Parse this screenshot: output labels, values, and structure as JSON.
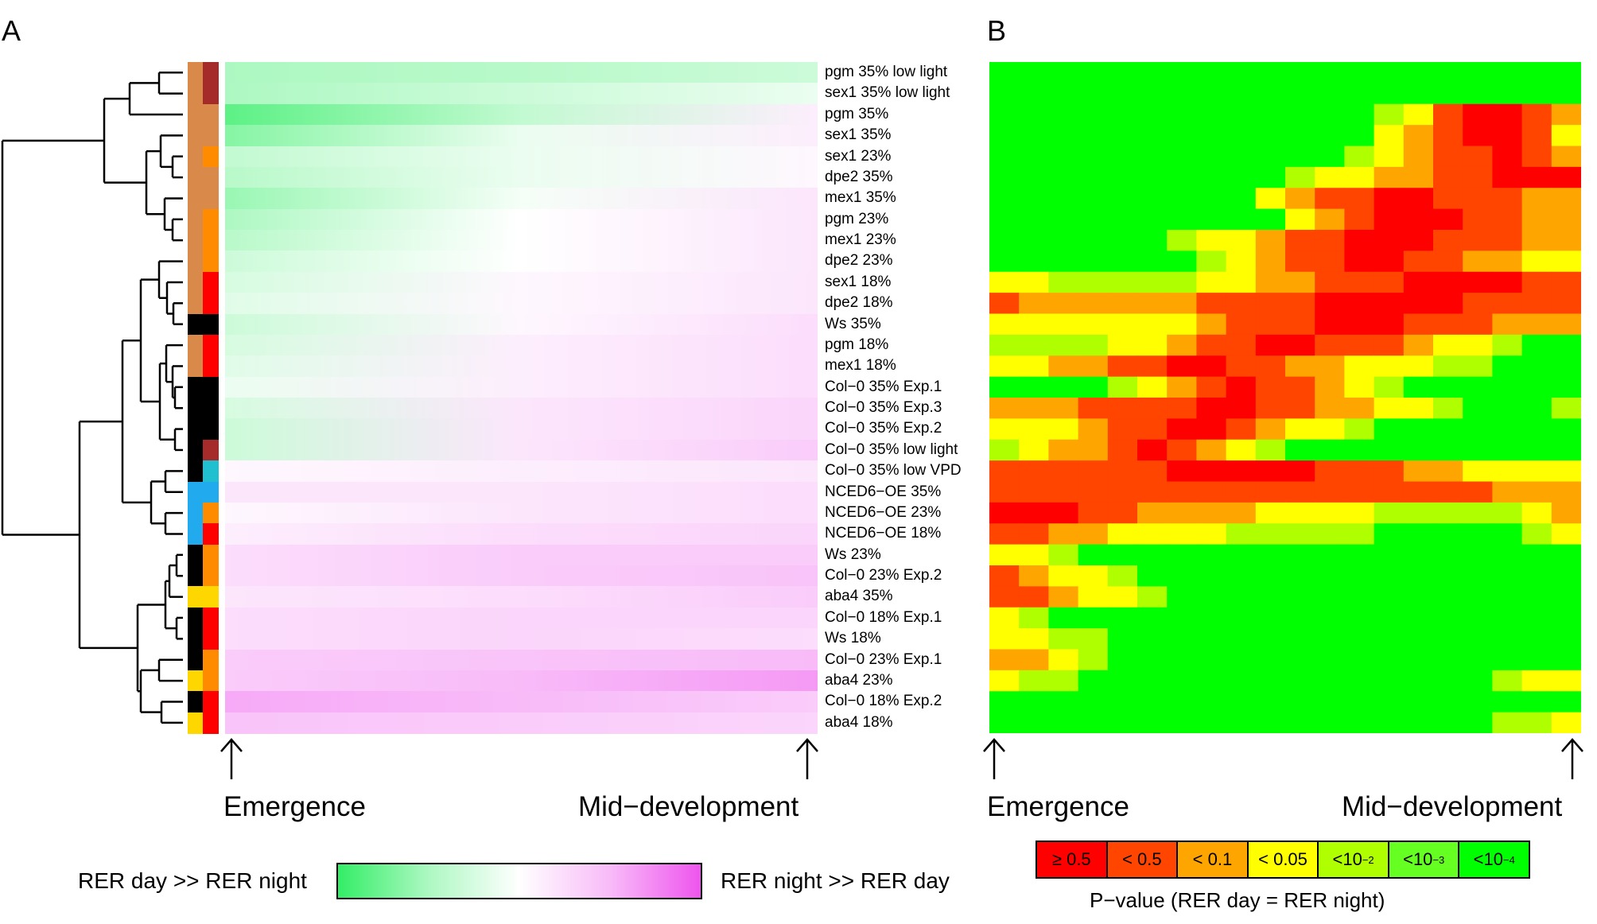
{
  "panels": {
    "a_label": "A",
    "b_label": "B"
  },
  "axis": {
    "start_label": "Emergence",
    "end_label": "Mid−development"
  },
  "legend_a": {
    "left_label": "RER day >> RER night",
    "right_label": "RER night >> RER day",
    "low_color": "#33ee66",
    "mid_color": "#ffffff",
    "high_color": "#ee55ee"
  },
  "legend_b": {
    "title": "P−value (RER day = RER night)",
    "categories": [
      {
        "text": "≥ 0.5",
        "sup": "",
        "color": "#ff0000"
      },
      {
        "text": "< 0.5",
        "sup": "",
        "color": "#ff4500"
      },
      {
        "text": "< 0.1",
        "sup": "",
        "color": "#ffa500"
      },
      {
        "text": "< 0.05",
        "sup": "",
        "color": "#ffff00"
      },
      {
        "text": "<10",
        "sup": "−2",
        "color": "#b0ff00"
      },
      {
        "text": "<10",
        "sup": "−3",
        "color": "#66ff22"
      },
      {
        "text": "<10",
        "sup": "−4",
        "color": "#00ff00"
      }
    ]
  },
  "annotation_palette": {
    "tan": "#d9894a",
    "black": "#000000",
    "blue": "#22aaee",
    "gold": "#ffd700",
    "orange": "#ff8c00",
    "red": "#ff0000",
    "darkred": "#a52a2a",
    "teal": "#20c0d0"
  },
  "chart_data": [
    {
      "type": "heatmap",
      "panel": "A",
      "scale": "diverging: negative = RER day >> RER night (green), positive = RER night >> RER day (magenta)",
      "x_start_label": "Emergence",
      "x_end_label": "Mid−development",
      "rows": [
        {
          "label": "pgm 35% low light",
          "genotype": "tan",
          "condition": "darkred",
          "values": [
            -0.4,
            -0.35,
            -0.25
          ]
        },
        {
          "label": "sex1 35% low light",
          "genotype": "tan",
          "condition": "darkred",
          "values": [
            -0.4,
            -0.25,
            -0.1
          ]
        },
        {
          "label": "pgm 35%",
          "genotype": "tan",
          "condition": "tan",
          "values": [
            -0.8,
            -0.3,
            0.1
          ]
        },
        {
          "label": "sex1 35%",
          "genotype": "tan",
          "condition": "tan",
          "values": [
            -0.6,
            -0.1,
            0.1
          ]
        },
        {
          "label": "sex1 23%",
          "genotype": "tan",
          "condition": "orange",
          "values": [
            -0.3,
            -0.1,
            0.05
          ]
        },
        {
          "label": "dpe2 35%",
          "genotype": "tan",
          "condition": "tan",
          "values": [
            -0.35,
            -0.1,
            0.05
          ]
        },
        {
          "label": "mex1 35%",
          "genotype": "tan",
          "condition": "tan",
          "values": [
            -0.5,
            -0.05,
            0.15
          ]
        },
        {
          "label": "pgm 23%",
          "genotype": "tan",
          "condition": "orange",
          "values": [
            -0.4,
            0.0,
            0.15
          ]
        },
        {
          "label": "mex1 23%",
          "genotype": "tan",
          "condition": "orange",
          "values": [
            -0.35,
            0.0,
            0.15
          ]
        },
        {
          "label": "dpe2 23%",
          "genotype": "tan",
          "condition": "orange",
          "values": [
            -0.25,
            0.0,
            0.15
          ]
        },
        {
          "label": "sex1 18%",
          "genotype": "tan",
          "condition": "red",
          "values": [
            -0.2,
            0.05,
            0.15
          ]
        },
        {
          "label": "dpe2 18%",
          "genotype": "tan",
          "condition": "red",
          "values": [
            -0.15,
            0.05,
            0.15
          ]
        },
        {
          "label": "Ws 35%",
          "genotype": "black",
          "condition": "black",
          "values": [
            -0.25,
            0.05,
            0.2
          ]
        },
        {
          "label": "pgm 18%",
          "genotype": "tan",
          "condition": "red",
          "values": [
            -0.2,
            0.1,
            0.2
          ]
        },
        {
          "label": "mex1 18%",
          "genotype": "tan",
          "condition": "red",
          "values": [
            -0.15,
            0.1,
            0.2
          ]
        },
        {
          "label": "Col−0 35% Exp.1",
          "genotype": "black",
          "condition": "black",
          "values": [
            -0.1,
            0.1,
            0.2
          ]
        },
        {
          "label": "Col−0 35% Exp.3",
          "genotype": "black",
          "condition": "black",
          "values": [
            -0.2,
            0.15,
            0.25
          ]
        },
        {
          "label": "Col−0 35% Exp.2",
          "genotype": "black",
          "condition": "black",
          "values": [
            -0.25,
            0.15,
            0.25
          ]
        },
        {
          "label": "Col−0 35% low light",
          "genotype": "black",
          "condition": "darkred",
          "values": [
            -0.25,
            0.15,
            0.3
          ]
        },
        {
          "label": "Col−0 35% low VPD",
          "genotype": "black",
          "condition": "teal",
          "values": [
            0.05,
            0.1,
            0.15
          ]
        },
        {
          "label": "NCED6−OE 35%",
          "genotype": "blue",
          "condition": "blue",
          "values": [
            0.15,
            0.15,
            0.2
          ]
        },
        {
          "label": "NCED6−OE 23%",
          "genotype": "blue",
          "condition": "orange",
          "values": [
            0.05,
            0.15,
            0.2
          ]
        },
        {
          "label": "NCED6−OE 18%",
          "genotype": "blue",
          "condition": "red",
          "values": [
            0.1,
            0.2,
            0.25
          ]
        },
        {
          "label": "Ws 23%",
          "genotype": "black",
          "condition": "orange",
          "values": [
            0.2,
            0.3,
            0.3
          ]
        },
        {
          "label": "Col−0 23% Exp.2",
          "genotype": "black",
          "condition": "orange",
          "values": [
            0.2,
            0.3,
            0.35
          ]
        },
        {
          "label": "aba4 35%",
          "genotype": "gold",
          "condition": "gold",
          "values": [
            0.15,
            0.2,
            0.3
          ]
        },
        {
          "label": "Col−0 18% Exp.1",
          "genotype": "black",
          "condition": "red",
          "values": [
            0.2,
            0.25,
            0.25
          ]
        },
        {
          "label": "Ws 18%",
          "genotype": "black",
          "condition": "red",
          "values": [
            0.2,
            0.25,
            0.2
          ]
        },
        {
          "label": "Col−0 23% Exp.1",
          "genotype": "black",
          "condition": "orange",
          "values": [
            0.3,
            0.35,
            0.4
          ]
        },
        {
          "label": "aba4 23%",
          "genotype": "gold",
          "condition": "orange",
          "values": [
            0.3,
            0.4,
            0.6
          ]
        },
        {
          "label": "Col−0 18% Exp.2",
          "genotype": "black",
          "condition": "red",
          "values": [
            0.5,
            0.4,
            0.3
          ]
        },
        {
          "label": "aba4 18%",
          "genotype": "gold",
          "condition": "red",
          "values": [
            0.35,
            0.3,
            0.25
          ]
        }
      ]
    },
    {
      "type": "heatmap",
      "panel": "B",
      "x_start_label": "Emergence",
      "x_end_label": "Mid−development",
      "value_encoding": "index into legend_b.categories",
      "grid": [
        "66666666666666666666",
        "66666666666666666666",
        "66666666666664310012",
        "66666666666663210013",
        "66666666666643211012",
        "66666666664332211000",
        "66666666632110011122",
        "66666666663210001122",
        "66666643321100011122",
        "66666664321100112233",
        "33444443322111000011",
        "12222221111000001111",
        "33333332111000111222",
        "44443321100111233466",
        "33221100112233344666",
        "66664321011234666666",
        "22211110011223346664",
        "33321100123346666666",
        "43221012346666666666",
        "11111100000111223333",
        "11111111111111111222",
        "00011222233334444432",
        "11223333444446666643",
        "33466666666666666666",
        "12334666666666666666",
        "11233466666666666666",
        "34666666666666666666",
        "33446666666666666666",
        "22346666666666666666",
        "34466666666666666433",
        "66666666666666666666",
        "66666666666666666443"
      ]
    }
  ]
}
